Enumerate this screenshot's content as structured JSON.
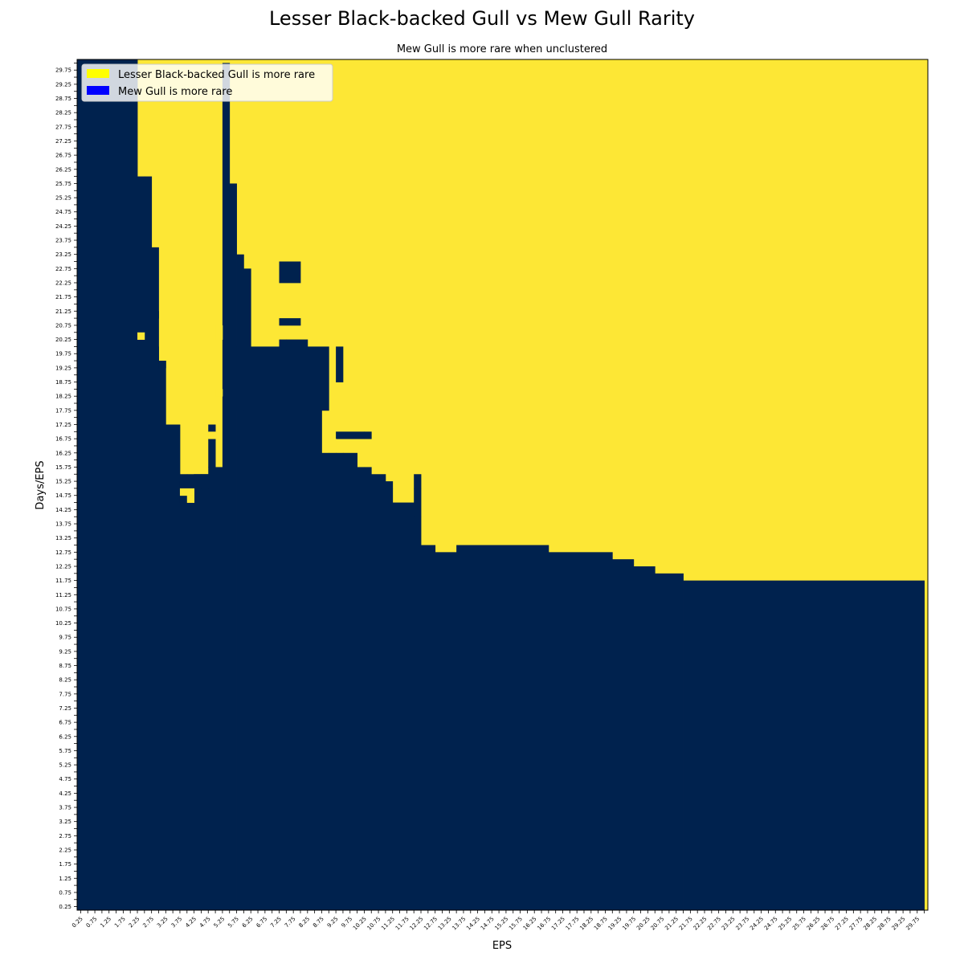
{
  "chart_data": {
    "type": "heatmap",
    "title": "Lesser Black-backed Gull vs Mew Gull Rarity",
    "subtitle": "Mew Gull is more rare when unclustered",
    "xlabel": "EPS",
    "ylabel": "Days/EPS",
    "x_start": 0.25,
    "x_step": 0.25,
    "x_count": 120,
    "y_start": 0.25,
    "y_step": 0.25,
    "y_count": 120,
    "values": {
      "0": "Mew Gull is more rare",
      "1": "Lesser Black-backed Gull is more rare"
    },
    "colors": {
      "lesser_more_rare": "#fde735",
      "mew_more_rare": "#00224e"
    },
    "column_boundary": [
      [
        0.25,
        0.25,
        30.0
      ],
      [
        2.25,
        2.5,
        26.0
      ],
      [
        2.5,
        2.75,
        26.0
      ],
      [
        2.75,
        3.0,
        23.5
      ],
      [
        3.0,
        3.25,
        19.5
      ],
      [
        3.25,
        3.5,
        17.25
      ],
      [
        3.5,
        3.75,
        17.25
      ],
      [
        3.75,
        4.0,
        15.5
      ],
      [
        4.0,
        4.25,
        15.5
      ],
      [
        4.25,
        4.5,
        15.5
      ],
      [
        4.5,
        4.75,
        15.5
      ],
      [
        4.75,
        5.0,
        15.75
      ],
      [
        5.0,
        5.25,
        15.75
      ],
      [
        5.25,
        5.5,
        30.0
      ],
      [
        5.5,
        5.75,
        25.75
      ],
      [
        5.75,
        6.0,
        23.25
      ],
      [
        6.0,
        6.25,
        22.75
      ],
      [
        6.25,
        7.5,
        17.75
      ],
      [
        7.5,
        8.25,
        17.75
      ],
      [
        8.25,
        8.75,
        17.75
      ],
      [
        8.75,
        9.0,
        16.25
      ],
      [
        9.0,
        9.25,
        16.25
      ],
      [
        9.25,
        9.5,
        16.25
      ],
      [
        9.5,
        10.0,
        16.25
      ],
      [
        10.0,
        10.25,
        15.75
      ],
      [
        10.25,
        10.5,
        15.75
      ],
      [
        10.5,
        11.0,
        15.5
      ],
      [
        11.0,
        11.25,
        15.0
      ],
      [
        11.25,
        12.0,
        14.5
      ],
      [
        12.0,
        12.25,
        14.0
      ],
      [
        12.25,
        12.75,
        13.0
      ],
      [
        12.75,
        13.5,
        12.75
      ],
      [
        13.5,
        16.75,
        13.0
      ],
      [
        16.75,
        19.0,
        12.75
      ],
      [
        19.0,
        19.75,
        12.5
      ],
      [
        19.75,
        20.5,
        12.25
      ],
      [
        20.5,
        21.5,
        12.0
      ],
      [
        21.5,
        30.0,
        11.75
      ]
    ],
    "mew_patches": [
      [
        5.75,
        6.25,
        17.75,
        20.0
      ],
      [
        6.25,
        7.25,
        17.75,
        20.0
      ],
      [
        7.25,
        7.5,
        17.75,
        20.25
      ],
      [
        7.5,
        8.25,
        17.75,
        20.25
      ],
      [
        7.25,
        8.0,
        22.25,
        23.0
      ],
      [
        7.25,
        8.0,
        20.75,
        21.0
      ],
      [
        2.25,
        2.5,
        20.0,
        20.25
      ],
      [
        2.75,
        3.0,
        19.5,
        20.0
      ],
      [
        2.75,
        3.0,
        18.75,
        19.25
      ],
      [
        2.75,
        3.0,
        21.0,
        21.25
      ],
      [
        3.0,
        3.25,
        19.25,
        19.5
      ],
      [
        8.25,
        9.0,
        17.75,
        20.0
      ],
      [
        9.25,
        9.5,
        18.75,
        20.0
      ],
      [
        9.25,
        10.25,
        16.75,
        17.0
      ],
      [
        10.25,
        10.5,
        16.75,
        17.0
      ],
      [
        4.25,
        4.75,
        15.0,
        15.5
      ],
      [
        3.75,
        4.0,
        15.0,
        15.25
      ],
      [
        3.75,
        4.0,
        14.5,
        14.75
      ],
      [
        4.0,
        4.25,
        14.25,
        14.75
      ],
      [
        4.75,
        5.0,
        15.75,
        16.75
      ],
      [
        4.75,
        5.0,
        17.0,
        17.25
      ],
      [
        11.0,
        11.25,
        15.0,
        15.25
      ],
      [
        12.0,
        12.25,
        14.0,
        15.0
      ],
      [
        12.0,
        12.25,
        15.0,
        15.5
      ]
    ],
    "lesser_patches": [
      [
        2.25,
        2.5,
        20.25,
        20.5
      ],
      [
        5.0,
        5.25,
        18.25,
        18.5
      ],
      [
        5.0,
        5.25,
        20.25,
        20.75
      ],
      [
        3.75,
        4.25,
        14.75,
        15.0
      ],
      [
        4.0,
        4.25,
        14.5,
        14.75
      ],
      [
        4.75,
        5.0,
        16.75,
        17.0
      ],
      [
        9.0,
        9.25,
        16.5,
        16.75
      ]
    ],
    "legend": [
      {
        "label": "Lesser Black-backed Gull is more rare",
        "color": "#ffff00"
      },
      {
        "label": "Mew Gull is more rare",
        "color": "#0000ff"
      }
    ],
    "legend_position": "top-left",
    "grid": false
  }
}
